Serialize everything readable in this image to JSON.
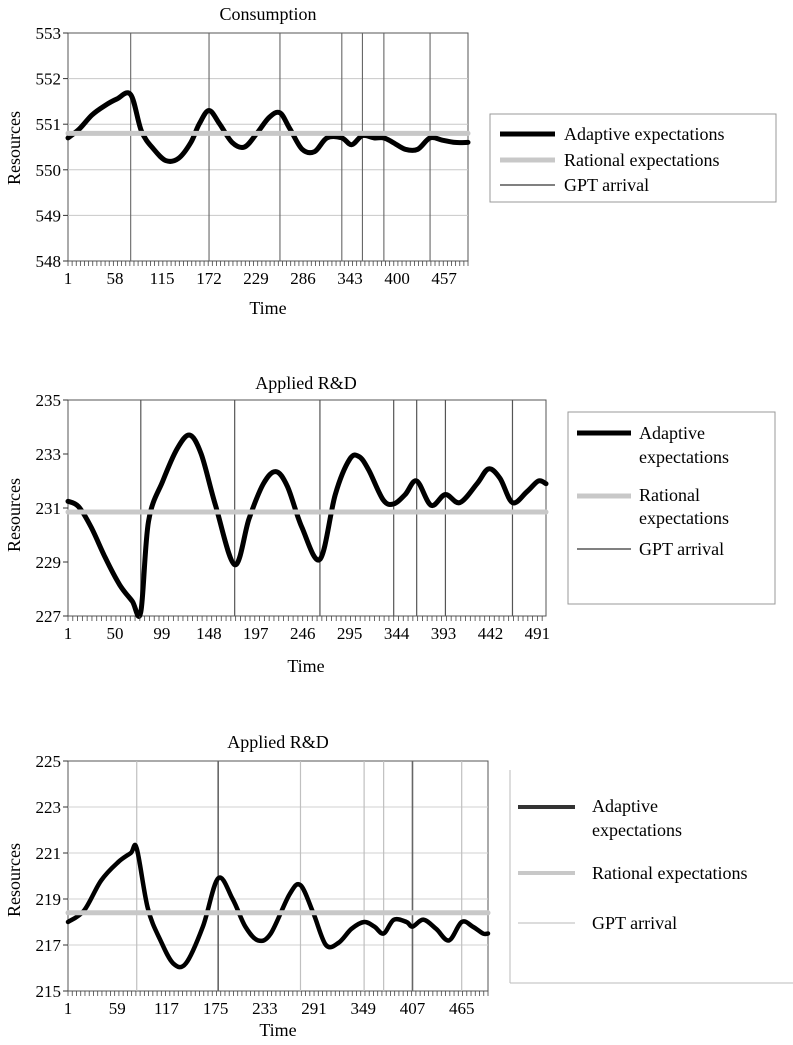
{
  "chart_data": [
    {
      "type": "line",
      "title": "Consumption",
      "xlabel": "Time",
      "ylabel": "Resources",
      "ylim": [
        548,
        553
      ],
      "y_ticks": [
        "553",
        "552",
        "551",
        "550",
        "549",
        "548"
      ],
      "x_ticks": [
        "1",
        "58",
        "115",
        "172",
        "229",
        "286",
        "343",
        "400",
        "457"
      ],
      "x_range": [
        1,
        486
      ],
      "grid": true,
      "legend": "right",
      "gpt_arrivals": [
        77,
        172,
        258,
        333,
        358,
        384,
        440
      ],
      "series": [
        {
          "name": "Adaptive expectations",
          "color": "#000000",
          "x": [
            1,
            15,
            30,
            45,
            60,
            77,
            90,
            105,
            120,
            135,
            150,
            160,
            172,
            185,
            200,
            215,
            230,
            245,
            258,
            270,
            285,
            300,
            315,
            333,
            345,
            358,
            372,
            384,
            395,
            410,
            425,
            440,
            455,
            470,
            486
          ],
          "y": [
            550.7,
            550.9,
            551.2,
            551.4,
            551.55,
            551.65,
            550.85,
            550.45,
            550.2,
            550.25,
            550.6,
            551.0,
            551.3,
            551.0,
            550.6,
            550.5,
            550.8,
            551.15,
            551.25,
            550.9,
            550.45,
            550.4,
            550.7,
            550.7,
            550.55,
            550.75,
            550.7,
            550.7,
            550.6,
            550.45,
            550.45,
            550.7,
            550.65,
            550.6,
            550.6
          ]
        },
        {
          "name": "Rational expectations",
          "color": "#c8c8c8",
          "x": [
            1,
            486
          ],
          "y": [
            550.8,
            550.8
          ]
        },
        {
          "name": "GPT arrival",
          "color": "#000000",
          "x": [],
          "y": []
        }
      ]
    },
    {
      "type": "line",
      "title": "Applied R&D",
      "xlabel": "Time",
      "ylabel": "Resources",
      "ylim": [
        227,
        235
      ],
      "y_ticks": [
        "235",
        "233",
        "231",
        "229",
        "227"
      ],
      "x_ticks": [
        "1",
        "50",
        "99",
        "148",
        "197",
        "246",
        "295",
        "344",
        "393",
        "442",
        "491"
      ],
      "x_range": [
        1,
        500
      ],
      "grid": false,
      "legend": "right",
      "gpt_arrivals": [
        77,
        175,
        264,
        341,
        365,
        395,
        465
      ],
      "series": [
        {
          "name": "Adaptive expectations",
          "color": "#000000",
          "x": [
            1,
            12,
            25,
            40,
            55,
            68,
            77,
            85,
            100,
            115,
            128,
            140,
            155,
            175,
            190,
            205,
            218,
            230,
            245,
            264,
            280,
            295,
            305,
            315,
            330,
            341,
            353,
            365,
            380,
            395,
            410,
            428,
            440,
            452,
            465,
            480,
            492,
            500
          ],
          "y": [
            231.25,
            231.05,
            230.3,
            229.15,
            228.15,
            227.55,
            227.15,
            230.5,
            232.0,
            233.2,
            233.7,
            233.0,
            231.1,
            228.9,
            230.6,
            231.9,
            232.35,
            231.8,
            230.3,
            229.1,
            231.5,
            232.8,
            232.9,
            232.4,
            231.3,
            231.15,
            231.5,
            232.0,
            231.1,
            231.5,
            231.2,
            231.9,
            232.45,
            232.1,
            231.2,
            231.6,
            232.0,
            231.9
          ]
        },
        {
          "name": "Rational expectations",
          "color": "#c8c8c8",
          "x": [
            1,
            500
          ],
          "y": [
            230.85,
            230.85
          ]
        },
        {
          "name": "GPT arrival",
          "color": "#000000",
          "x": [],
          "y": []
        }
      ]
    },
    {
      "type": "line",
      "title": "Applied R&D",
      "xlabel": "Time",
      "ylabel": "Resources",
      "ylim": [
        215,
        225
      ],
      "y_ticks": [
        "225",
        "223",
        "221",
        "219",
        "217",
        "215"
      ],
      "x_ticks": [
        "1",
        "59",
        "117",
        "175",
        "233",
        "291",
        "349",
        "407",
        "465"
      ],
      "x_range": [
        1,
        496
      ],
      "grid": true,
      "legend": "right",
      "gpt_arrivals": [
        82,
        178,
        275,
        350,
        373,
        407,
        465
      ],
      "series": [
        {
          "name": "Adaptive expectations",
          "color": "#000000",
          "x": [
            1,
            20,
            40,
            60,
            75,
            82,
            95,
            110,
            125,
            140,
            160,
            178,
            195,
            210,
            225,
            240,
            262,
            275,
            290,
            305,
            320,
            335,
            350,
            362,
            373,
            385,
            400,
            407,
            420,
            435,
            450,
            465,
            478,
            490,
            496
          ],
          "y": [
            218.0,
            218.5,
            219.8,
            220.6,
            221.0,
            221.2,
            218.6,
            217.2,
            216.2,
            216.2,
            217.8,
            219.9,
            219.0,
            217.8,
            217.2,
            217.5,
            219.2,
            219.6,
            218.4,
            217.0,
            217.1,
            217.7,
            218.0,
            217.8,
            217.5,
            218.1,
            218.0,
            217.8,
            218.1,
            217.7,
            217.2,
            218.0,
            217.8,
            217.5,
            217.5
          ]
        },
        {
          "name": "Rational expectations",
          "color": "#c8c8c8",
          "x": [
            1,
            496
          ],
          "y": [
            218.4,
            218.4
          ]
        },
        {
          "name": "GPT arrival",
          "color": "#c8c8c8",
          "x": [],
          "y": []
        }
      ]
    }
  ],
  "legends": [
    [
      {
        "text": "Adaptive expectations",
        "color": "#000000"
      },
      {
        "text": "Rational expectations",
        "color": "#c8c8c8"
      },
      {
        "text": "GPT arrival",
        "color": "#000000"
      }
    ],
    [
      {
        "line1": "Adaptive",
        "line2": "expectations",
        "color": "#000000"
      },
      {
        "line1": "Rational",
        "line2": "expectations",
        "color": "#c8c8c8"
      },
      {
        "line1": "GPT arrival",
        "line2": "",
        "color": "#000000"
      }
    ],
    [
      {
        "line1": "Adaptive",
        "line2": "expectations",
        "color": "#333333"
      },
      {
        "line1": "Rational expectations",
        "line2": "",
        "color": "#c8c8c8"
      },
      {
        "line1": "GPT arrival",
        "line2": "",
        "color": "#c8c8c8"
      }
    ]
  ]
}
